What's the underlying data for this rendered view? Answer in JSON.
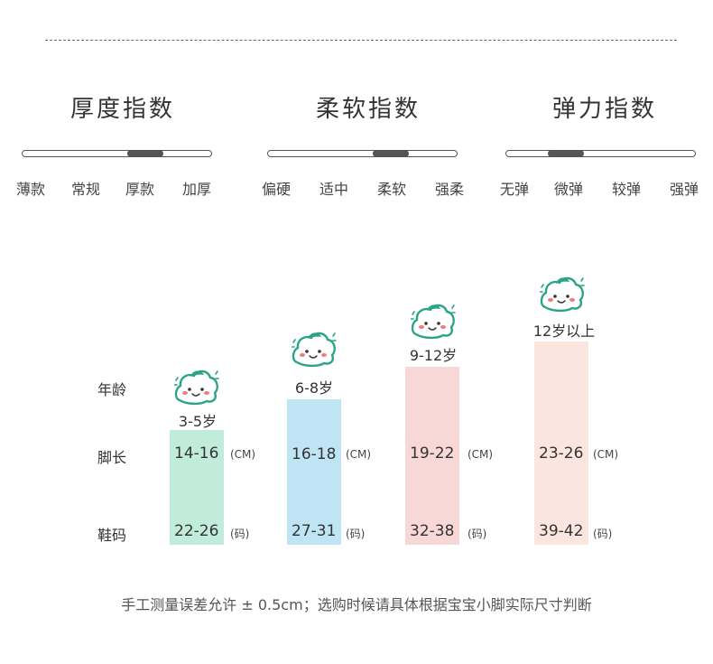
{
  "indices": [
    {
      "title": "厚度指数",
      "levels": [
        "薄款",
        "常规",
        "厚款",
        "加厚"
      ],
      "selected": 2
    },
    {
      "title": "柔软指数",
      "levels": [
        "偏硬",
        "适中",
        "柔软",
        "强柔"
      ],
      "selected": 2
    },
    {
      "title": "弹力指数",
      "levels": [
        "无弹",
        "微弹",
        "较弹",
        "强弹"
      ],
      "selected": 1
    }
  ],
  "size_table": {
    "row_labels": {
      "age": "年龄",
      "foot": "脚长",
      "shoe": "鞋码"
    },
    "units": {
      "foot": "(CM)",
      "shoe": "(码)"
    },
    "columns": [
      {
        "age": "3-5岁",
        "foot": "14-16",
        "shoe": "22-26",
        "color": "#c1ecdc"
      },
      {
        "age": "6-8岁",
        "foot": "16-18",
        "shoe": "27-31",
        "color": "#bfe4f4"
      },
      {
        "age": "9-12岁",
        "foot": "19-22",
        "shoe": "32-38",
        "color": "#f7d8d7"
      },
      {
        "age": "12岁以上",
        "foot": "23-26",
        "shoe": "39-42",
        "color": "#fbe6df"
      }
    ]
  },
  "colors": {
    "mascot_stroke": "#2aa386",
    "mascot_cheek": "#f07b7b"
  },
  "footnote": "手工测量误差允许 ± 0.5cm；选购时候请具体根据宝宝小脚实际尺寸判断"
}
